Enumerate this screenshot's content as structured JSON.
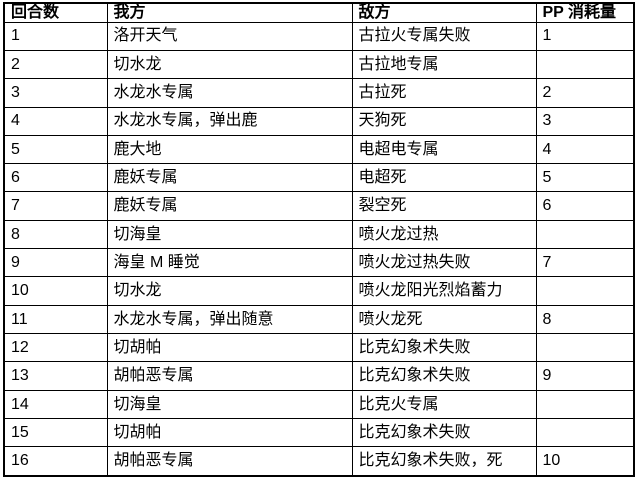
{
  "table": {
    "name": "battle-log",
    "headers": [
      "回合数",
      "我方",
      "敌方",
      "PP 消耗量"
    ],
    "rows": [
      [
        "1",
        "洛开天气",
        "古拉火专属失败",
        "1"
      ],
      [
        "2",
        "切水龙",
        "古拉地专属",
        ""
      ],
      [
        "3",
        "水龙水专属",
        "古拉死",
        "2"
      ],
      [
        "4",
        "水龙水专属，弹出鹿",
        "天狗死",
        "3"
      ],
      [
        "5",
        "鹿大地",
        "电超电专属",
        "4"
      ],
      [
        "6",
        "鹿妖专属",
        "电超死",
        "5"
      ],
      [
        "7",
        "鹿妖专属",
        "裂空死",
        "6"
      ],
      [
        "8",
        "切海皇",
        "喷火龙过热",
        ""
      ],
      [
        "9",
        "海皇 M 睡觉",
        "喷火龙过热失败",
        "7"
      ],
      [
        "10",
        "切水龙",
        "喷火龙阳光烈焰蓄力",
        ""
      ],
      [
        "11",
        "水龙水专属，弹出随意",
        "喷火龙死",
        "8"
      ],
      [
        "12",
        "切胡帕",
        "比克幻象术失败",
        ""
      ],
      [
        "13",
        "胡帕恶专属",
        "比克幻象术失败",
        "9"
      ],
      [
        "14",
        "切海皇",
        "比克火专属",
        ""
      ],
      [
        "15",
        "切胡帕",
        "比克幻象术失败",
        ""
      ],
      [
        "16",
        "胡帕恶专属",
        "比克幻象术失败，死",
        "10"
      ]
    ],
    "colors": {
      "border": "#000000",
      "text": "#000000",
      "background": "#ffffff"
    }
  }
}
